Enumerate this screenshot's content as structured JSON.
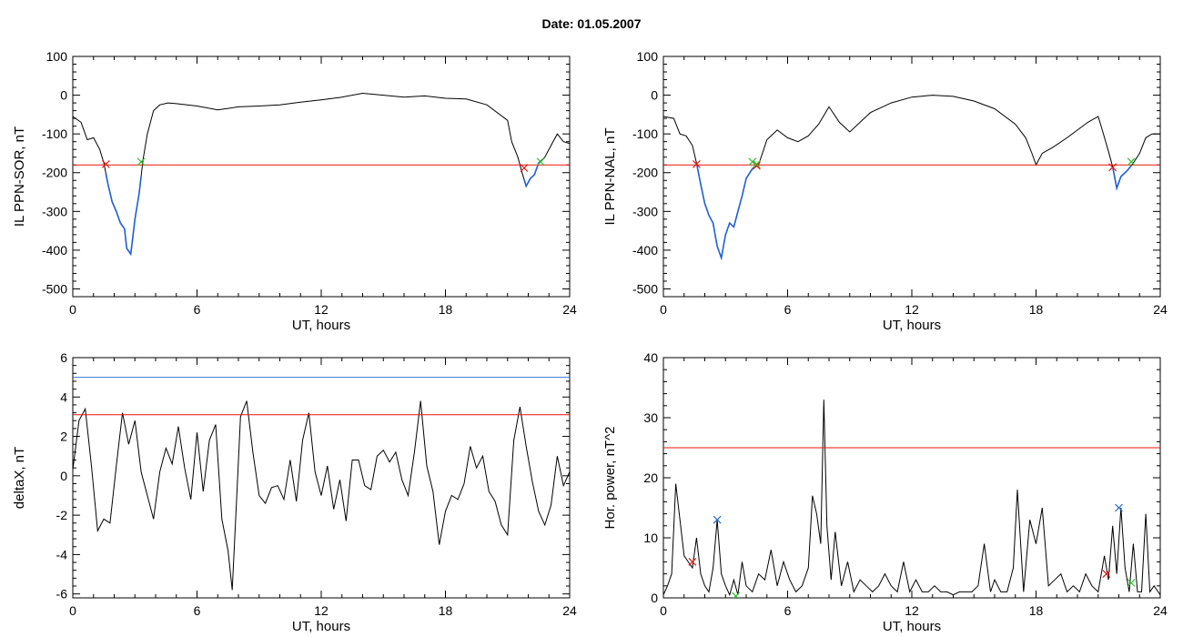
{
  "figure_title": "Date:  01.05.2007",
  "colors": {
    "trace": "#000000",
    "threshold": "#e8140c",
    "selection": "#1f5fd6",
    "blue_line": "#3a78d8",
    "start_marker": "#e8140c",
    "end_marker": "#2ec02e",
    "peak_marker": "#1f70c8"
  },
  "chart_data": [
    {
      "type": "line",
      "ylabel": "IL PPN-SOR, nT",
      "xlabel": "UT, hours",
      "xlim": [
        0,
        24
      ],
      "ylim": [
        -520,
        100
      ],
      "xticks": [
        0,
        6,
        12,
        18,
        24
      ],
      "yticks": [
        100,
        0,
        -100,
        -200,
        -300,
        -400,
        -500
      ],
      "series": [
        {
          "x": [
            0,
            0.4,
            0.7,
            1.0,
            1.3,
            1.5,
            1.7,
            1.9,
            2.1,
            2.3,
            2.5,
            2.6,
            2.8,
            3.0,
            3.2,
            3.4,
            3.6,
            3.9,
            4.2,
            4.6,
            5,
            6,
            7,
            8,
            9,
            10,
            11,
            12,
            13,
            14,
            15,
            16,
            17,
            18,
            19,
            20,
            21,
            21.2,
            21.5,
            21.7,
            21.9,
            22.1,
            22.3,
            22.5,
            22.8,
            23.1,
            23.4,
            23.7,
            24
          ],
          "y": [
            -55,
            -70,
            -115,
            -110,
            -140,
            -175,
            -230,
            -275,
            -300,
            -330,
            -345,
            -395,
            -410,
            -320,
            -255,
            -165,
            -100,
            -40,
            -25,
            -20,
            -22,
            -28,
            -38,
            -30,
            -28,
            -25,
            -18,
            -12,
            -5,
            5,
            0,
            -5,
            -2,
            -8,
            -10,
            -25,
            -65,
            -120,
            -160,
            -200,
            -235,
            -215,
            -205,
            -175,
            -160,
            -130,
            -100,
            -120,
            -125
          ]
        }
      ],
      "threshold": -180,
      "highlight_ranges": [
        [
          1.6,
          3.3
        ],
        [
          21.8,
          22.6
        ]
      ],
      "start_markers": [
        {
          "x": 1.6,
          "y": -178
        },
        {
          "x": 21.8,
          "y": -188
        }
      ],
      "end_markers": [
        {
          "x": 3.3,
          "y": -172
        },
        {
          "x": 22.6,
          "y": -172
        }
      ]
    },
    {
      "type": "line",
      "ylabel": "IL PPN-NAL, nT",
      "xlabel": "UT, hours",
      "xlim": [
        0,
        24
      ],
      "ylim": [
        -520,
        100
      ],
      "xticks": [
        0,
        6,
        12,
        18,
        24
      ],
      "yticks": [
        100,
        0,
        -100,
        -200,
        -300,
        -400,
        -500
      ],
      "series": [
        {
          "x": [
            0,
            0.5,
            0.8,
            1.1,
            1.4,
            1.6,
            1.8,
            2.0,
            2.2,
            2.4,
            2.6,
            2.8,
            3.0,
            3.2,
            3.4,
            3.6,
            3.8,
            4.0,
            4.3,
            4.6,
            5.0,
            5.5,
            6.0,
            6.5,
            7.0,
            7.5,
            8.0,
            8.5,
            9.0,
            9.5,
            10,
            11,
            12,
            13,
            14,
            15,
            16,
            17,
            17.5,
            17.8,
            18.0,
            18.3,
            18.8,
            19.5,
            20,
            20.5,
            21,
            21.2,
            21.5,
            21.7,
            21.9,
            22.1,
            22.4,
            22.7,
            23,
            23.3,
            23.6,
            24
          ],
          "y": [
            -55,
            -60,
            -100,
            -105,
            -130,
            -175,
            -230,
            -280,
            -310,
            -330,
            -390,
            -420,
            -360,
            -330,
            -340,
            -300,
            -260,
            -215,
            -190,
            -180,
            -115,
            -90,
            -110,
            -120,
            -105,
            -75,
            -30,
            -70,
            -95,
            -70,
            -45,
            -20,
            -5,
            0,
            -3,
            -15,
            -35,
            -75,
            -110,
            -150,
            -180,
            -150,
            -135,
            -110,
            -90,
            -70,
            -55,
            -90,
            -145,
            -185,
            -240,
            -210,
            -195,
            -175,
            -150,
            -110,
            -100,
            -100
          ]
        }
      ],
      "threshold": -180,
      "highlight_ranges": [
        [
          1.6,
          4.5
        ],
        [
          21.7,
          22.6
        ]
      ],
      "start_markers": [
        {
          "x": 1.6,
          "y": -178
        },
        {
          "x": 4.5,
          "y": -182
        },
        {
          "x": 21.7,
          "y": -186
        }
      ],
      "end_markers": [
        {
          "x": 4.3,
          "y": -172
        },
        {
          "x": 4.5,
          "y": -178
        },
        {
          "x": 22.6,
          "y": -172
        }
      ]
    },
    {
      "type": "line",
      "ylabel": "deltaX, nT",
      "xlabel": "UT, hours",
      "xlim": [
        0,
        24
      ],
      "ylim": [
        -6.2,
        6
      ],
      "xticks": [
        0,
        6,
        12,
        18,
        24
      ],
      "yticks": [
        6,
        4,
        2,
        0,
        -2,
        -4,
        -6
      ],
      "series": [
        {
          "x": [
            0,
            0.3,
            0.6,
            0.9,
            1.2,
            1.5,
            1.8,
            2.1,
            2.4,
            2.7,
            3.0,
            3.3,
            3.6,
            3.9,
            4.2,
            4.5,
            4.8,
            5.1,
            5.4,
            5.7,
            6.0,
            6.3,
            6.6,
            6.9,
            7.2,
            7.5,
            7.7,
            7.9,
            8.1,
            8.4,
            8.7,
            9.0,
            9.3,
            9.6,
            9.9,
            10.2,
            10.5,
            10.8,
            11.1,
            11.4,
            11.7,
            12.0,
            12.3,
            12.6,
            12.9,
            13.2,
            13.5,
            13.8,
            14.1,
            14.4,
            14.7,
            15.0,
            15.3,
            15.6,
            15.9,
            16.2,
            16.5,
            16.8,
            17.1,
            17.4,
            17.7,
            18.0,
            18.3,
            18.6,
            18.9,
            19.2,
            19.5,
            19.8,
            20.1,
            20.4,
            20.7,
            21.0,
            21.3,
            21.6,
            21.9,
            22.2,
            22.5,
            22.8,
            23.1,
            23.4,
            23.7,
            24
          ],
          "y": [
            0.3,
            2.8,
            3.4,
            0.5,
            -2.8,
            -2.2,
            -2.4,
            0.5,
            3.2,
            1.6,
            2.8,
            0.2,
            -1.0,
            -2.2,
            0.2,
            1.4,
            0.6,
            2.5,
            0.4,
            -1.2,
            2.2,
            -0.8,
            1.8,
            2.6,
            -2.2,
            -3.8,
            -5.8,
            -1.5,
            3.0,
            3.8,
            1.2,
            -1.0,
            -1.4,
            -0.6,
            -0.5,
            -1.2,
            0.8,
            -1.3,
            1.8,
            3.2,
            0.2,
            -1.0,
            0.5,
            -1.7,
            -0.2,
            -2.3,
            0.8,
            0.8,
            -0.5,
            -0.7,
            1.0,
            1.3,
            0.7,
            1.2,
            -0.2,
            -1.0,
            1.2,
            3.8,
            0.5,
            -0.8,
            -3.5,
            -1.8,
            -1.0,
            -1.2,
            -0.4,
            1.5,
            0.4,
            1.0,
            -0.8,
            -1.3,
            -2.5,
            -3.0,
            1.8,
            3.5,
            1.5,
            -0.3,
            -1.8,
            -2.5,
            -1.5,
            1.0,
            -0.5,
            0.2
          ]
        }
      ],
      "thresholds": [
        {
          "value": 3.1,
          "color": "#e8140c"
        },
        {
          "value": 5.0,
          "color": "#3a78d8"
        }
      ]
    },
    {
      "type": "line",
      "ylabel": "Hor. power, nT^2",
      "xlabel": "UT, hours",
      "xlim": [
        0,
        24
      ],
      "ylim": [
        0,
        40
      ],
      "xticks": [
        0,
        6,
        12,
        18,
        24
      ],
      "yticks": [
        40,
        30,
        20,
        10,
        0
      ],
      "series": [
        {
          "x": [
            0,
            0.2,
            0.4,
            0.6,
            0.8,
            1.0,
            1.2,
            1.4,
            1.6,
            1.8,
            2.0,
            2.2,
            2.4,
            2.6,
            2.8,
            3.0,
            3.2,
            3.4,
            3.6,
            3.8,
            4.0,
            4.3,
            4.6,
            4.9,
            5.2,
            5.5,
            5.8,
            6.1,
            6.4,
            6.7,
            7.0,
            7.2,
            7.4,
            7.6,
            7.75,
            7.9,
            8.1,
            8.3,
            8.6,
            8.9,
            9.2,
            9.5,
            9.8,
            10.1,
            10.4,
            10.7,
            11.0,
            11.3,
            11.6,
            11.9,
            12.2,
            12.5,
            12.8,
            13.1,
            13.4,
            13.7,
            14.0,
            14.3,
            14.6,
            14.9,
            15.2,
            15.5,
            15.8,
            16.0,
            16.3,
            16.6,
            16.9,
            17.1,
            17.4,
            17.7,
            18.0,
            18.3,
            18.6,
            18.9,
            19.2,
            19.5,
            19.8,
            20.1,
            20.4,
            20.7,
            21.0,
            21.3,
            21.5,
            21.7,
            21.9,
            22.1,
            22.3,
            22.5,
            22.7,
            22.9,
            23.1,
            23.3,
            23.5,
            23.7,
            24
          ],
          "y": [
            0.5,
            2,
            4,
            19,
            13,
            7,
            6,
            5,
            10,
            4,
            2,
            1,
            5,
            13,
            4,
            2,
            0.5,
            3,
            0.5,
            6,
            2,
            1,
            4,
            3,
            8,
            2,
            6,
            3,
            1,
            2,
            5,
            17,
            14,
            9,
            33,
            12,
            3,
            11,
            2,
            6,
            1,
            3,
            2,
            1,
            2,
            4,
            2,
            1,
            6,
            1,
            3,
            1,
            1,
            2,
            1,
            1,
            0.5,
            1,
            1,
            1,
            2,
            9,
            1,
            3,
            1,
            1,
            5,
            18,
            1,
            13,
            9,
            15,
            2,
            3,
            4,
            1,
            2,
            1,
            4,
            2,
            1,
            7,
            3,
            12,
            4,
            15,
            5,
            1,
            9,
            1,
            1,
            14,
            1,
            2,
            0.5
          ]
        }
      ],
      "threshold": 25,
      "start_markers": [
        {
          "x": 1.4,
          "y": 6
        },
        {
          "x": 21.4,
          "y": 4
        }
      ],
      "peak_markers": [
        {
          "x": 2.6,
          "y": 13
        },
        {
          "x": 22.0,
          "y": 15
        }
      ],
      "end_markers": [
        {
          "x": 3.5,
          "y": 0.3
        },
        {
          "x": 22.6,
          "y": 2.5
        }
      ]
    }
  ]
}
